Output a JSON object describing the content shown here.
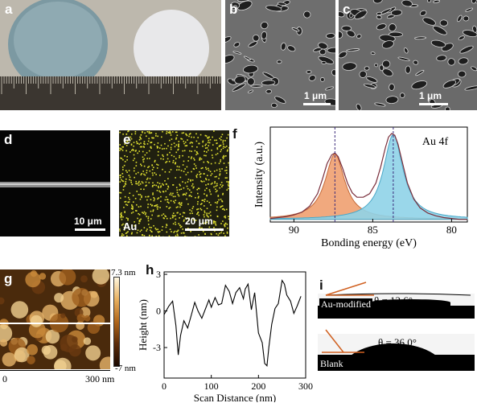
{
  "panels": {
    "a": {
      "label": "a"
    },
    "b": {
      "label": "b",
      "scale_text": "1 μm"
    },
    "c": {
      "label": "c",
      "scale_text": "1 μm"
    },
    "d": {
      "label": "d",
      "scale_text": "10 μm"
    },
    "e": {
      "label": "e",
      "scale_text": "20 μm",
      "element_label": "Au"
    },
    "f": {
      "label": "f"
    },
    "g": {
      "label": "g",
      "colorbar_max": "7.3 nm",
      "colorbar_min": "-7 nm",
      "x_axis_start": "0",
      "x_axis_end": "300 nm"
    },
    "h": {
      "label": "h"
    },
    "i": {
      "label": "i",
      "top_angle": "θ = 12.6°",
      "top_sample": "Au-modified",
      "bottom_angle": "θ = 36.0°",
      "bottom_sample": "Blank"
    }
  },
  "chart_data": [
    {
      "panel": "f",
      "type": "line",
      "annotation": "Au 4f",
      "xlabel": "Bonding energy (eV)",
      "ylabel": "Intensity (a.u.)",
      "xlim": [
        91.5,
        79
      ],
      "x_ticks": [
        "90",
        "85",
        "80"
      ],
      "peak_positions_eV": [
        87.4,
        83.7
      ],
      "fill_colors": [
        "#f0a070",
        "#8fd3e8"
      ],
      "envelope_color": "#7a2f3c",
      "x": [
        91.5,
        91.0,
        90.5,
        90.0,
        89.5,
        89.0,
        88.5,
        88.2,
        87.9,
        87.6,
        87.4,
        87.2,
        86.9,
        86.6,
        86.3,
        86.0,
        85.6,
        85.2,
        84.8,
        84.5,
        84.2,
        84.0,
        83.8,
        83.6,
        83.4,
        83.1,
        82.8,
        82.4,
        82.0,
        81.5,
        81.0,
        80.5,
        80.0,
        79.5,
        79.0
      ],
      "series": [
        {
          "values": [
            0.04,
            0.05,
            0.06,
            0.08,
            0.11,
            0.18,
            0.32,
            0.48,
            0.66,
            0.76,
            0.78,
            0.74,
            0.6,
            0.44,
            0.33,
            0.28,
            0.28,
            0.32,
            0.44,
            0.62,
            0.84,
            0.96,
            1.0,
            0.98,
            0.88,
            0.66,
            0.44,
            0.26,
            0.16,
            0.1,
            0.07,
            0.05,
            0.04,
            0.03,
            0.03
          ]
        }
      ]
    },
    {
      "panel": "h",
      "type": "line",
      "xlabel": "Scan Distance (nm)",
      "ylabel": "Height (nm)",
      "xlim": [
        0,
        300
      ],
      "ylim": [
        -5.5,
        3.2
      ],
      "x_ticks": [
        "0",
        "100",
        "200",
        "300"
      ],
      "y_ticks": [
        "3",
        "0",
        "-3"
      ],
      "x": [
        0,
        10,
        18,
        25,
        30,
        35,
        42,
        50,
        58,
        65,
        72,
        80,
        88,
        95,
        100,
        108,
        115,
        122,
        130,
        138,
        145,
        152,
        160,
        168,
        172,
        178,
        185,
        192,
        200,
        208,
        213,
        218,
        222,
        228,
        235,
        242,
        250,
        255,
        260,
        268,
        275,
        282,
        290
      ],
      "series": [
        {
          "values": [
            -0.3,
            0.4,
            0.8,
            -1.2,
            -3.6,
            -2.0,
            -0.8,
            -1.4,
            -0.3,
            0.7,
            0.0,
            -0.6,
            0.2,
            0.9,
            0.3,
            1.1,
            0.5,
            0.6,
            2.1,
            1.6,
            0.6,
            1.5,
            1.9,
            1.0,
            1.8,
            2.2,
            0.1,
            1.5,
            -1.8,
            -2.6,
            -4.3,
            -4.5,
            -3.0,
            -1.1,
            0.2,
            0.6,
            2.5,
            2.2,
            1.3,
            0.8,
            -0.2,
            0.4,
            1.2
          ]
        }
      ]
    }
  ]
}
